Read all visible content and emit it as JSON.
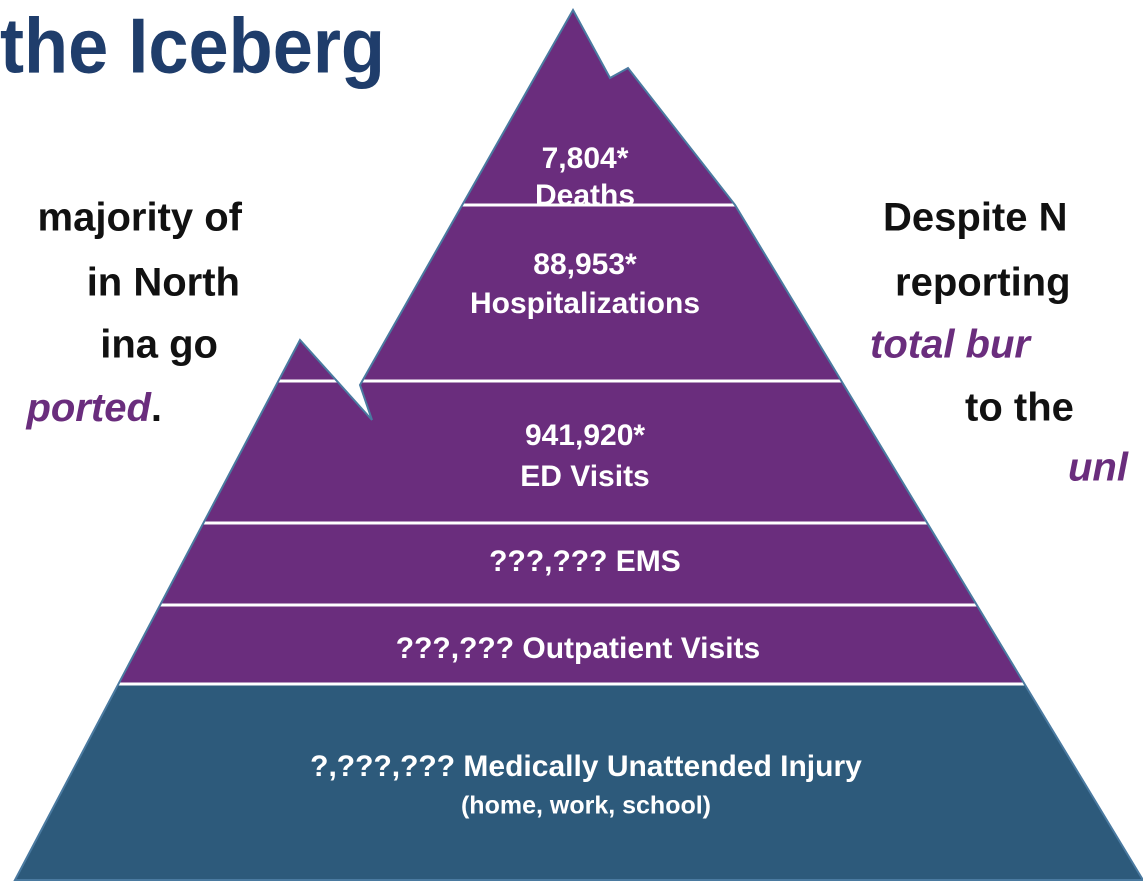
{
  "title": "the Iceberg",
  "left_lines": [
    "majority of",
    "in North",
    "ina go"
  ],
  "left_emphasis": "ported",
  "left_end": ".",
  "right_lines": [
    {
      "text": "Despite N",
      "italic": false
    },
    {
      "text": "reporting",
      "italic": false
    },
    {
      "text": "total bur",
      "italic": true
    },
    {
      "text": "to the",
      "italic": false
    },
    {
      "text": "unl",
      "italic": true
    }
  ],
  "levels": [
    {
      "count": "7,804*",
      "label": "Deaths"
    },
    {
      "count": "88,953*",
      "label": "Hospitalizations"
    },
    {
      "count": "941,920*",
      "label": "ED Visits"
    },
    {
      "label": "???,??? EMS"
    },
    {
      "label": "???,??? Outpatient Visits"
    },
    {
      "label": "?,???,??? Medically Unattended Injury",
      "note": "(home, work, school)"
    }
  ]
}
